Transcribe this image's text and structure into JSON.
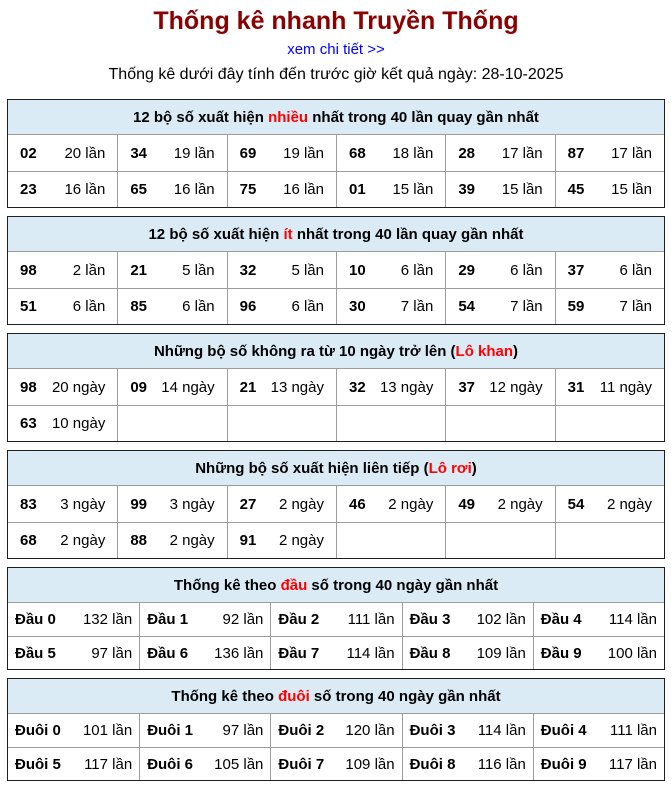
{
  "page": {
    "title": "Thống kê nhanh Truyền Thống",
    "detail_link": "xem chi tiết >>",
    "subtitle": "Thống kê dưới đây tính đến trước giờ kết quả ngày: 28-10-2025"
  },
  "colors": {
    "title_red": "#8b0000",
    "highlight_red": "#ff0000",
    "link_blue": "#0000ff",
    "table_header_bg": "#daebf5",
    "outer_border": "#1f1f1f",
    "inner_border": "#9c9c9c"
  },
  "tables": [
    {
      "id": "most-frequent",
      "columns": 6,
      "header_parts": [
        {
          "text": "12 bộ số xuất hiện ",
          "highlight": false
        },
        {
          "text": "nhiều",
          "highlight": true
        },
        {
          "text": " nhất trong 40 lần quay gần nhất",
          "highlight": false
        }
      ],
      "cells": [
        {
          "label": "02",
          "value": "20 lần"
        },
        {
          "label": "34",
          "value": "19 lần"
        },
        {
          "label": "69",
          "value": "19 lần"
        },
        {
          "label": "68",
          "value": "18 lần"
        },
        {
          "label": "28",
          "value": "17 lần"
        },
        {
          "label": "87",
          "value": "17 lần"
        },
        {
          "label": "23",
          "value": "16 lần"
        },
        {
          "label": "65",
          "value": "16 lần"
        },
        {
          "label": "75",
          "value": "16 lần"
        },
        {
          "label": "01",
          "value": "15 lần"
        },
        {
          "label": "39",
          "value": "15 lần"
        },
        {
          "label": "45",
          "value": "15 lần"
        }
      ]
    },
    {
      "id": "least-frequent",
      "columns": 6,
      "header_parts": [
        {
          "text": "12 bộ số xuất hiện ",
          "highlight": false
        },
        {
          "text": "ít",
          "highlight": true
        },
        {
          "text": " nhất trong 40 lần quay gần nhất",
          "highlight": false
        }
      ],
      "cells": [
        {
          "label": "98",
          "value": "2 lần"
        },
        {
          "label": "21",
          "value": "5 lần"
        },
        {
          "label": "32",
          "value": "5 lần"
        },
        {
          "label": "10",
          "value": "6 lần"
        },
        {
          "label": "29",
          "value": "6 lần"
        },
        {
          "label": "37",
          "value": "6 lần"
        },
        {
          "label": "51",
          "value": "6 lần"
        },
        {
          "label": "85",
          "value": "6 lần"
        },
        {
          "label": "96",
          "value": "6 lần"
        },
        {
          "label": "30",
          "value": "7 lần"
        },
        {
          "label": "54",
          "value": "7 lần"
        },
        {
          "label": "59",
          "value": "7 lần"
        }
      ]
    },
    {
      "id": "lo-khan",
      "columns": 6,
      "header_parts": [
        {
          "text": "Những bộ số không ra từ 10 ngày trở lên (",
          "highlight": false
        },
        {
          "text": "Lô khan",
          "highlight": true
        },
        {
          "text": ")",
          "highlight": false
        }
      ],
      "cells": [
        {
          "label": "98",
          "value": "20 ngày"
        },
        {
          "label": "09",
          "value": "14 ngày"
        },
        {
          "label": "21",
          "value": "13 ngày"
        },
        {
          "label": "32",
          "value": "13 ngày"
        },
        {
          "label": "37",
          "value": "12 ngày"
        },
        {
          "label": "31",
          "value": "11 ngày"
        },
        {
          "label": "63",
          "value": "10 ngày"
        },
        {
          "label": "",
          "value": ""
        },
        {
          "label": "",
          "value": ""
        },
        {
          "label": "",
          "value": ""
        },
        {
          "label": "",
          "value": ""
        },
        {
          "label": "",
          "value": ""
        }
      ]
    },
    {
      "id": "lo-roi",
      "columns": 6,
      "header_parts": [
        {
          "text": "Những bộ số xuất hiện liên tiếp (",
          "highlight": false
        },
        {
          "text": "Lô rơi",
          "highlight": true
        },
        {
          "text": ")",
          "highlight": false
        }
      ],
      "cells": [
        {
          "label": "83",
          "value": "3 ngày"
        },
        {
          "label": "99",
          "value": "3 ngày"
        },
        {
          "label": "27",
          "value": "2 ngày"
        },
        {
          "label": "46",
          "value": "2 ngày"
        },
        {
          "label": "49",
          "value": "2 ngày"
        },
        {
          "label": "54",
          "value": "2 ngày"
        },
        {
          "label": "68",
          "value": "2 ngày"
        },
        {
          "label": "88",
          "value": "2 ngày"
        },
        {
          "label": "91",
          "value": "2 ngày"
        },
        {
          "label": "",
          "value": ""
        },
        {
          "label": "",
          "value": ""
        },
        {
          "label": "",
          "value": ""
        }
      ]
    },
    {
      "id": "dau",
      "columns": 5,
      "header_parts": [
        {
          "text": "Thống kê theo ",
          "highlight": false
        },
        {
          "text": "đầu",
          "highlight": true
        },
        {
          "text": " số trong 40 ngày gần nhất",
          "highlight": false
        }
      ],
      "cells": [
        {
          "label": "Đầu 0",
          "value": "132 lần"
        },
        {
          "label": "Đầu 1",
          "value": "92 lần"
        },
        {
          "label": "Đầu 2",
          "value": "111 lần"
        },
        {
          "label": "Đầu 3",
          "value": "102 lần"
        },
        {
          "label": "Đầu 4",
          "value": "114 lần"
        },
        {
          "label": "Đầu 5",
          "value": "97 lần"
        },
        {
          "label": "Đầu 6",
          "value": "136 lần"
        },
        {
          "label": "Đầu 7",
          "value": "114 lần"
        },
        {
          "label": "Đầu 8",
          "value": "109 lần"
        },
        {
          "label": "Đầu 9",
          "value": "100 lần"
        }
      ]
    },
    {
      "id": "duoi",
      "columns": 5,
      "header_parts": [
        {
          "text": "Thống kê theo ",
          "highlight": false
        },
        {
          "text": "đuôi",
          "highlight": true
        },
        {
          "text": " số trong 40 ngày gần nhất",
          "highlight": false
        }
      ],
      "cells": [
        {
          "label": "Đuôi 0",
          "value": "101 lần"
        },
        {
          "label": "Đuôi 1",
          "value": "97 lần"
        },
        {
          "label": "Đuôi 2",
          "value": "120 lần"
        },
        {
          "label": "Đuôi 3",
          "value": "114 lần"
        },
        {
          "label": "Đuôi 4",
          "value": "111 lần"
        },
        {
          "label": "Đuôi 5",
          "value": "117 lần"
        },
        {
          "label": "Đuôi 6",
          "value": "105 lần"
        },
        {
          "label": "Đuôi 7",
          "value": "109 lần"
        },
        {
          "label": "Đuôi 8",
          "value": "116 lần"
        },
        {
          "label": "Đuôi 9",
          "value": "117 lần"
        }
      ]
    }
  ]
}
